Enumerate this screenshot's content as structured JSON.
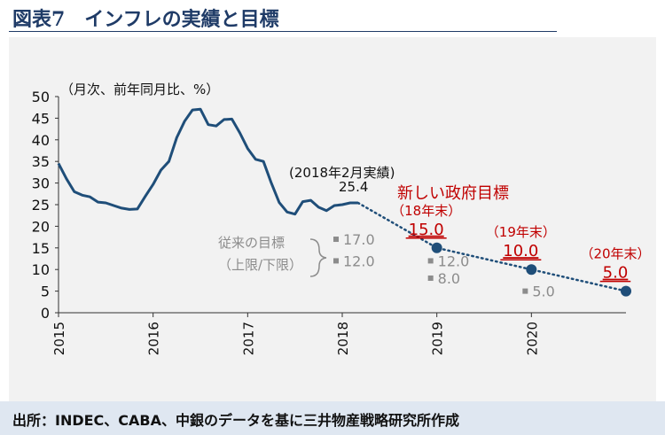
{
  "figure_title": "図表7　インフレの実績と目標",
  "source": "出所：INDEC、CABA、中銀のデータを基に三井物産戦略研究所作成",
  "colors": {
    "line": "#1f4e79",
    "accent_red": "#c00000",
    "gray": "#8c8c8c",
    "panel": "#f2f2f2",
    "source_bar": "#dfe7f1",
    "title": "#1f3b67"
  },
  "chart_data": {
    "type": "line",
    "ylabel": "（月次、前年同月比、%）",
    "ylim": [
      0,
      50
    ],
    "yticks": [
      0,
      5,
      10,
      15,
      20,
      25,
      30,
      35,
      40,
      45,
      50
    ],
    "xlim": [
      2015,
      2021
    ],
    "xticks": [
      "2015",
      "2016",
      "2017",
      "2018",
      "2019",
      "2020"
    ],
    "grid": false,
    "series": [
      {
        "style": "solid-line",
        "x": [
          2015.0,
          2015.083,
          2015.167,
          2015.25,
          2015.333,
          2015.417,
          2015.5,
          2015.583,
          2015.667,
          2015.75,
          2015.833,
          2015.917,
          2016.0,
          2016.083,
          2016.167,
          2016.25,
          2016.333,
          2016.417,
          2016.5,
          2016.583,
          2016.667,
          2016.75,
          2016.833,
          2016.917,
          2017.0,
          2017.083,
          2017.167,
          2017.25,
          2017.333,
          2017.417,
          2017.5,
          2017.583,
          2017.667,
          2017.75,
          2017.833,
          2017.917,
          2018.0,
          2018.083,
          2018.167
        ],
        "y": [
          34.5,
          31.0,
          28.0,
          27.2,
          26.8,
          25.6,
          25.4,
          24.8,
          24.2,
          23.9,
          24.0,
          26.9,
          29.7,
          33.0,
          35.0,
          40.5,
          44.3,
          46.9,
          47.1,
          43.5,
          43.2,
          44.7,
          44.8,
          41.6,
          38.0,
          35.5,
          35.0,
          30.0,
          25.5,
          23.3,
          22.8,
          25.7,
          26.0,
          24.4,
          23.6,
          24.8,
          25.0,
          25.4,
          25.4
        ]
      },
      {
        "style": "dotted-projection",
        "x": [
          2018.167,
          2019.0,
          2020.0,
          2021.0
        ],
        "y": [
          25.4,
          15.0,
          10.0,
          5.0
        ]
      }
    ],
    "new_targets": [
      {
        "x": 2019.0,
        "y": 15.0,
        "period": "（18年末）",
        "value": "15.0"
      },
      {
        "x": 2020.0,
        "y": 10.0,
        "period": "（19年末）",
        "value": "10.0"
      },
      {
        "x": 2021.0,
        "y": 5.0,
        "period": "（20年末）",
        "value": "5.0"
      }
    ],
    "old_targets": [
      {
        "x": 2018.0,
        "y": 17.0,
        "label": "17.0"
      },
      {
        "x": 2018.0,
        "y": 12.0,
        "label": "12.0"
      },
      {
        "x": 2019.0,
        "y": 12.0,
        "label": "12.0"
      },
      {
        "x": 2019.0,
        "y": 8.0,
        "label": "8.0"
      },
      {
        "x": 2020.0,
        "y": 5.0,
        "label": "5.0"
      }
    ],
    "annotations": {
      "actual_label": "(2018年2月実績)",
      "actual_value": "25.4",
      "new_target_title": "新しい政府目標",
      "old_target_line1": "従来の目標",
      "old_target_line2": "（上限/下限）"
    }
  }
}
